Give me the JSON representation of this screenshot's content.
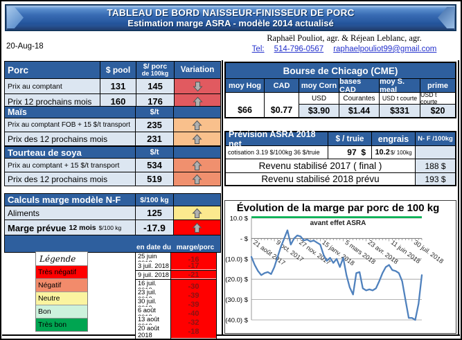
{
  "banner": {
    "title_line1": "TABLEAU  DE BORD NAISSEUR-FINISSEUR  DE PORC",
    "title_line2": "Estimation marge ASRA - modèle 2014 actualisé"
  },
  "header": {
    "date": "20-Aug-18",
    "authors": "Raphaël Pouliot, agr.    &    Réjean Leblanc, agr.",
    "tel_label": "Tel:",
    "phone": "514-796-0567",
    "email": "raphaelpouliot99@gmail.com"
  },
  "colors": {
    "header_blue": "#2e5f9e",
    "row_light_blue": "#dce6f1",
    "porc_variation_bg": "#e15a60",
    "mais_variation_bg": "#f9c08c",
    "soya_variation_bg": "#f0906e",
    "aliments_variation_bg": "#fbe98e",
    "marge_variation_bg": "#ff0000",
    "history_value_bg": "#ff0000",
    "history_value_text": "#8b1212",
    "chart_line": "#4f81bd",
    "chart_title_underline": "#00b050"
  },
  "porc": {
    "title": "Porc",
    "col_pool": "$ pool",
    "col_per_line1": "$/ porc",
    "col_per_line2": "de 100kg",
    "col_variation": "Variation",
    "rows": [
      {
        "label": "Prix au comptant",
        "pool": "131",
        "per100": "145",
        "variation": "down"
      },
      {
        "label": "Prix 12 prochains mois",
        "pool": "160",
        "per100": "176",
        "variation": "up"
      }
    ]
  },
  "mais": {
    "title": "Maïs",
    "unit": "$/t",
    "rows": [
      {
        "label": "Prix au comptant  FOB + 15 $/t transport",
        "value": "235",
        "variation": "up"
      },
      {
        "label": "Prix des 12 prochains mois",
        "value": "231",
        "variation": "up"
      }
    ]
  },
  "soya": {
    "title": "Tourteau de soya",
    "unit": "$/t",
    "rows": [
      {
        "label": "Prix au comptant  + 15 $/t transport",
        "value": "534",
        "variation": "up"
      },
      {
        "label": "Prix des 12 prochains mois",
        "value": "519",
        "variation": "up"
      }
    ]
  },
  "calculs": {
    "title": "Calculs marge  modèle N-F",
    "unit": "$/100 kg",
    "aliments_label": "Aliments",
    "aliments_value": "125",
    "aliments_variation": "up",
    "marge_label": "Marge prévue",
    "marge_label_small": "12 mois",
    "marge_label_unit": "$/100 kg",
    "marge_value": "-17.9",
    "marge_variation": "up"
  },
  "cme": {
    "title": "Bourse de Chicago (CME)",
    "columns": [
      {
        "header": "moy Hog",
        "sub": "",
        "value": "$66"
      },
      {
        "header": "CAD",
        "sub": "",
        "value": "$0.77"
      },
      {
        "header": "moy Corn",
        "sub": "USD",
        "value": "$3.90"
      },
      {
        "header": "bases CAD",
        "sub": "Courantes",
        "value": "$1.44"
      },
      {
        "header": "moy S. meal",
        "sub": "USD t courte",
        "value": "$331"
      },
      {
        "header": "prime",
        "sub": "USD t courte",
        "value": "$20"
      }
    ]
  },
  "asra": {
    "title": "Prévision ASRA 2018 net",
    "col_truie": "$ / truie",
    "col_engrais": "engrais",
    "col_nf": "N- F /100kg",
    "cotisation": "cotisation 3.19 $/100kg  36 $/truie",
    "truie_value": "97  $",
    "engrais_value": "10.2",
    "engrais_unit": "$/ 100kg",
    "rev2017_label": "Revenu stabilisé 2017 ( final )",
    "rev2017_value": "188 $",
    "rev2018_label": "Revenu stabilisé 2018 prévu",
    "rev2018_value": "193 $"
  },
  "legend": {
    "title": "Légende",
    "items": [
      {
        "label": "Très négatif",
        "color": "#ff0000"
      },
      {
        "label": "Négatif",
        "color": "#f28b6b"
      },
      {
        "label": "Neutre",
        "color": "#fbf4a0"
      },
      {
        "label": "Bon",
        "color": "#cdf2dc"
      },
      {
        "label": "Très bon",
        "color": "#00a551"
      }
    ]
  },
  "history": {
    "col_date": "en date du",
    "col_marge": "marge/porc",
    "rows": [
      {
        "date": "25 juin 2018",
        "value": "-16"
      },
      {
        "date": "3 juil. 2018",
        "value": "-17"
      },
      {
        "date": "9 juil. 2018",
        "value": "-21"
      },
      {
        "date": "16 juil. 2018",
        "value": "-30"
      },
      {
        "date": "23 juil. 2018",
        "value": "-39"
      },
      {
        "date": "30 juil. 2018",
        "value": "-39"
      },
      {
        "date": "6 août 2018",
        "value": "-40"
      },
      {
        "date": "13 août 2018",
        "value": "-32"
      },
      {
        "date": "20 août 2018",
        "value": "-18"
      }
    ]
  },
  "chart_data": {
    "type": "line",
    "title": "Évolution  de la marge par porc de 100 kg",
    "subtitle": "avant effet ASRA",
    "xlabel": "",
    "ylabel": "",
    "ylim": [
      -40,
      10
    ],
    "grid": true,
    "y_ticks": [
      "10.0 $",
      "- $",
      "(10.0) $",
      "(20.0) $",
      "(30.0) $",
      "(40.0) $"
    ],
    "x_labels": [
      "21 août 2017",
      "9 oct. 2017",
      "27 nov. 2017",
      "15 janv. 2018",
      "5 mars 2018",
      "23 avr. 2018",
      "11 juin 2018",
      "30 juil. 2018"
    ],
    "x_label_step_weeks": 7,
    "values": [
      -9,
      -13,
      -16,
      -18,
      -17,
      -16.5,
      -17.5,
      -14,
      -9,
      -4,
      0,
      4,
      -3,
      0,
      1.5,
      1,
      -1,
      -0.5,
      -1.5,
      -1,
      -2,
      -3,
      -8,
      -11,
      -9.5,
      -12,
      -10,
      -14,
      -9.5,
      -18,
      -24,
      -27.5,
      -17,
      -16.5,
      -24.5,
      -25.5,
      -25,
      -25.5,
      -24.5,
      -21,
      -17,
      -14,
      -13,
      -15.5,
      -16,
      -17,
      -21,
      -30,
      -39,
      -39,
      -40,
      -32,
      -18
    ],
    "line_color": "#4f81bd",
    "title_underline_color": "#00b050"
  }
}
